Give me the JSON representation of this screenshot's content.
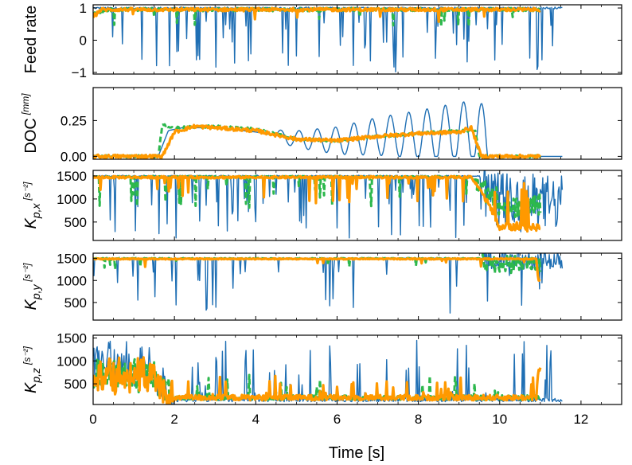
{
  "chart_data": {
    "type": "line",
    "x_label": "Time [s]",
    "x_ticks": [
      "0",
      "2",
      "4",
      "6",
      "8",
      "10",
      "12"
    ],
    "xlim": [
      0,
      13
    ],
    "colors": {
      "blue": "#1f6fb4",
      "green": "#2db84d",
      "orange": "#ff9900"
    },
    "panels": [
      {
        "ylabel_main": "Feed rate",
        "ylabel_sub": "",
        "unit": "",
        "ylim": [
          -1.05,
          1.1
        ],
        "yticks": [
          1,
          0,
          -1
        ],
        "ytick_labels": [
          "1",
          "0",
          "−1"
        ],
        "series": [
          {
            "color": "blue",
            "t_end": 11.55,
            "base": 1.0,
            "jitter": 0.03,
            "spikes": 0.1,
            "spike_min": -1.0,
            "spike_max": 0.6,
            "points": [
              [
                0.0,
                1.0
              ],
              [
                1.0,
                1.0
              ],
              [
                11.55,
                1.0
              ]
            ]
          },
          {
            "color": "green",
            "t_end": 11.0,
            "dashed": true,
            "base": 0.94,
            "jitter": 0.05,
            "spikes": 0.02,
            "spike_min": 0.4,
            "spike_max": 0.85,
            "points": [
              [
                0.0,
                0.8
              ],
              [
                0.3,
                0.95
              ],
              [
                11.0,
                0.95
              ]
            ]
          },
          {
            "color": "orange",
            "t_end": 11.0,
            "base": 0.93,
            "jitter": 0.05,
            "spikes": 0.015,
            "spike_min": 0.5,
            "spike_max": 0.85,
            "points": [
              [
                0.0,
                0.75
              ],
              [
                0.2,
                0.95
              ],
              [
                11.0,
                0.95
              ]
            ]
          }
        ]
      },
      {
        "ylabel_main": "DOC",
        "ylabel_sub": "",
        "unit": "[mm]",
        "ylim": [
          -0.02,
          0.48
        ],
        "yticks": [
          0.25,
          0.0
        ],
        "ytick_labels": [
          "0.25",
          "0.00"
        ],
        "series": [
          {
            "color": "blue",
            "t_end": 11.55,
            "base": 0,
            "jitter": 0.0,
            "spikes": 0.0,
            "osc": {
              "t0": 4.5,
              "t1": 9.9,
              "period": 0.45,
              "amp0": 0.04,
              "amp1": 0.24
            },
            "points": [
              [
                0.0,
                0.0
              ],
              [
                1.6,
                0.0
              ],
              [
                1.85,
                0.18
              ],
              [
                2.2,
                0.2
              ],
              [
                3.0,
                0.2
              ],
              [
                4.0,
                0.17
              ],
              [
                5.0,
                0.12
              ],
              [
                6.0,
                0.11
              ],
              [
                7.0,
                0.14
              ],
              [
                8.0,
                0.15
              ],
              [
                9.0,
                0.17
              ],
              [
                9.5,
                0.17
              ],
              [
                9.85,
                0.0
              ],
              [
                11.55,
                0.0
              ]
            ]
          },
          {
            "color": "green",
            "t_end": 11.0,
            "dashed": true,
            "base": 0,
            "jitter": 0.008,
            "spikes": 0.0,
            "points": [
              [
                0.0,
                0.0
              ],
              [
                1.6,
                0.0
              ],
              [
                1.7,
                0.22
              ],
              [
                2.0,
                0.2
              ],
              [
                3.0,
                0.21
              ],
              [
                4.0,
                0.19
              ],
              [
                5.0,
                0.12
              ],
              [
                6.0,
                0.11
              ],
              [
                7.0,
                0.14
              ],
              [
                8.0,
                0.16
              ],
              [
                9.0,
                0.18
              ],
              [
                9.4,
                0.18
              ],
              [
                9.5,
                0.0
              ],
              [
                11.0,
                0.0
              ]
            ]
          },
          {
            "color": "orange",
            "t_end": 11.0,
            "base": 0,
            "jitter": 0.012,
            "spikes": 0.0,
            "points": [
              [
                0.0,
                0.0
              ],
              [
                1.7,
                0.0
              ],
              [
                2.0,
                0.17
              ],
              [
                2.5,
                0.21
              ],
              [
                3.0,
                0.2
              ],
              [
                4.0,
                0.18
              ],
              [
                5.0,
                0.12
              ],
              [
                6.0,
                0.11
              ],
              [
                7.0,
                0.14
              ],
              [
                8.0,
                0.16
              ],
              [
                9.0,
                0.17
              ],
              [
                9.3,
                0.2
              ],
              [
                9.55,
                0.0
              ],
              [
                11.0,
                0.0
              ]
            ]
          }
        ]
      },
      {
        "ylabel_main": "K",
        "ylabel_sub": "p,x",
        "unit": "[s⁻²]",
        "ylim": [
          100,
          1620
        ],
        "yticks": [
          1500,
          1000,
          500
        ],
        "ytick_labels": [
          "1500",
          "1000",
          "500"
        ],
        "series": [
          {
            "color": "blue",
            "t_end": 11.55,
            "base": 1500,
            "jitter": 15,
            "spikes": 0.12,
            "spike_min": 150,
            "spike_max": 1300,
            "noise_after": [
              9.6,
              600
            ],
            "points": [
              [
                0.0,
                1500
              ],
              [
                9.5,
                1500
              ],
              [
                9.7,
                1000
              ],
              [
                11.55,
                900
              ]
            ]
          },
          {
            "color": "green",
            "t_end": 11.0,
            "dashed": true,
            "base": 1500,
            "jitter": 20,
            "spikes": 0.04,
            "spike_min": 800,
            "spike_max": 1300,
            "noise_after": [
              9.4,
              250
            ],
            "points": [
              [
                0.0,
                1480
              ],
              [
                9.3,
                1480
              ],
              [
                9.6,
                1200
              ],
              [
                10.0,
                800
              ],
              [
                11.0,
                900
              ]
            ]
          },
          {
            "color": "orange",
            "t_end": 11.0,
            "base": 1480,
            "jitter": 25,
            "spikes": 0.05,
            "spike_min": 900,
            "spike_max": 1350,
            "noise_after": [
              9.6,
              80
            ],
            "points": [
              [
                0.0,
                1470
              ],
              [
                9.3,
                1470
              ],
              [
                9.6,
                1100
              ],
              [
                10.0,
                400
              ],
              [
                11.0,
                380
              ]
            ]
          }
        ]
      },
      {
        "ylabel_main": "K",
        "ylabel_sub": "p,y",
        "unit": "[s⁻²]",
        "ylim": [
          100,
          1620
        ],
        "yticks": [
          1500,
          1000,
          500
        ],
        "ytick_labels": [
          "1500",
          "1000",
          "500"
        ],
        "series": [
          {
            "color": "blue",
            "t_end": 11.55,
            "base": 1500,
            "jitter": 10,
            "spikes": 0.05,
            "spike_min": 200,
            "spike_max": 1300,
            "noise_after": [
              9.6,
              250
            ],
            "points": [
              [
                0.0,
                1500
              ],
              [
                11.55,
                1500
              ]
            ]
          },
          {
            "color": "green",
            "t_end": 11.0,
            "dashed": true,
            "base": 1500,
            "jitter": 10,
            "spikes": 0.01,
            "spike_min": 1250,
            "spike_max": 1450,
            "noise_after": [
              9.5,
              200
            ],
            "points": [
              [
                0.0,
                1500
              ],
              [
                9.5,
                1500
              ],
              [
                9.8,
                1350
              ],
              [
                11.0,
                1400
              ]
            ]
          },
          {
            "color": "orange",
            "t_end": 11.0,
            "base": 1490,
            "jitter": 12,
            "spikes": 0.01,
            "spike_min": 1300,
            "spike_max": 1450,
            "points": [
              [
                0.0,
                1490
              ],
              [
                10.9,
                1490
              ],
              [
                10.95,
                1000
              ],
              [
                11.0,
                1000
              ]
            ]
          }
        ]
      },
      {
        "ylabel_main": "K",
        "ylabel_sub": "p,z",
        "unit": "[s⁻²]",
        "ylim": [
          50,
          1560
        ],
        "yticks": [
          1500,
          1000,
          500
        ],
        "ytick_labels": [
          "1500",
          "1000",
          "500"
        ],
        "series": [
          {
            "color": "blue",
            "t_end": 11.55,
            "base": 150,
            "jitter": 40,
            "spikes": 0.1,
            "spike_min": 300,
            "spike_max": 1450,
            "noise_before": [
              2.0,
              350
            ],
            "points": [
              [
                0.0,
                1200
              ],
              [
                0.5,
                900
              ],
              [
                1.5,
                700
              ],
              [
                1.9,
                150
              ],
              [
                11.55,
                150
              ]
            ]
          },
          {
            "color": "green",
            "t_end": 11.0,
            "dashed": true,
            "base": 180,
            "jitter": 50,
            "spikes": 0.05,
            "spike_min": 250,
            "spike_max": 700,
            "noise_before": [
              2.0,
              300
            ],
            "points": [
              [
                0.0,
                700
              ],
              [
                0.5,
                750
              ],
              [
                1.5,
                650
              ],
              [
                1.9,
                200
              ],
              [
                11.0,
                200
              ]
            ]
          },
          {
            "color": "orange",
            "t_end": 11.0,
            "base": 180,
            "jitter": 60,
            "spikes": 0.08,
            "spike_min": 250,
            "spike_max": 700,
            "noise_before": [
              2.0,
              350
            ],
            "points": [
              [
                0.0,
                700
              ],
              [
                0.5,
                750
              ],
              [
                1.5,
                650
              ],
              [
                1.9,
                200
              ],
              [
                10.9,
                200
              ],
              [
                10.95,
                800
              ],
              [
                11.0,
                800
              ]
            ]
          }
        ]
      }
    ]
  }
}
